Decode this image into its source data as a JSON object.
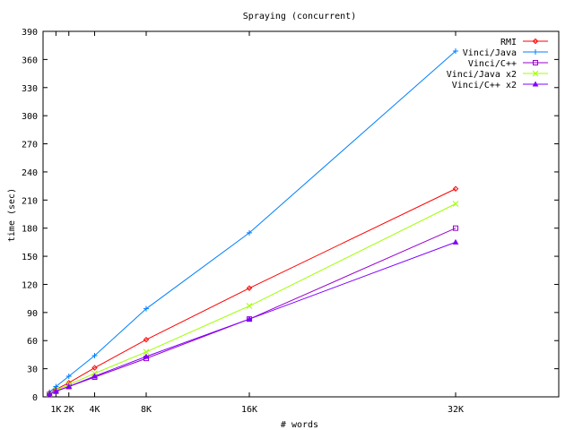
{
  "chart_data": {
    "type": "line",
    "title": "Spraying (concurrent)",
    "xlabel": "# words",
    "ylabel": "time (sec)",
    "xlim": [
      0,
      40000
    ],
    "ylim": [
      0,
      390
    ],
    "x": [
      500,
      1000,
      2000,
      4000,
      8000,
      16000,
      32000
    ],
    "xticks": [
      {
        "value": 1000,
        "label": "1K"
      },
      {
        "value": 2000,
        "label": "2K"
      },
      {
        "value": 4000,
        "label": "4K"
      },
      {
        "value": 8000,
        "label": "8K"
      },
      {
        "value": 16000,
        "label": "16K"
      },
      {
        "value": 32000,
        "label": "32K"
      }
    ],
    "yticks": [
      0,
      30,
      60,
      90,
      120,
      150,
      180,
      210,
      240,
      270,
      300,
      330,
      360,
      390
    ],
    "grid": false,
    "legend_position": "top-right",
    "series": [
      {
        "name": "RMI",
        "color": "#ff0000",
        "marker": "diamond",
        "values": [
          4,
          8,
          15,
          31,
          61,
          116,
          222
        ]
      },
      {
        "name": "Vinci/Java",
        "color": "#0080ff",
        "marker": "plus",
        "values": [
          5,
          11,
          22,
          44,
          94,
          175,
          369
        ]
      },
      {
        "name": "Vinci/C++",
        "color": "#9900cc",
        "marker": "square",
        "values": [
          3,
          6,
          11,
          21,
          41,
          83,
          180
        ]
      },
      {
        "name": "Vinci/Java x2",
        "color": "#a0ff00",
        "marker": "x",
        "values": [
          3,
          7,
          13,
          25,
          48,
          97,
          206
        ]
      },
      {
        "name": "Vinci/C++ x2",
        "color": "#8000ff",
        "marker": "triangle",
        "values": [
          3,
          6,
          11,
          22,
          43,
          83,
          165
        ]
      }
    ]
  }
}
